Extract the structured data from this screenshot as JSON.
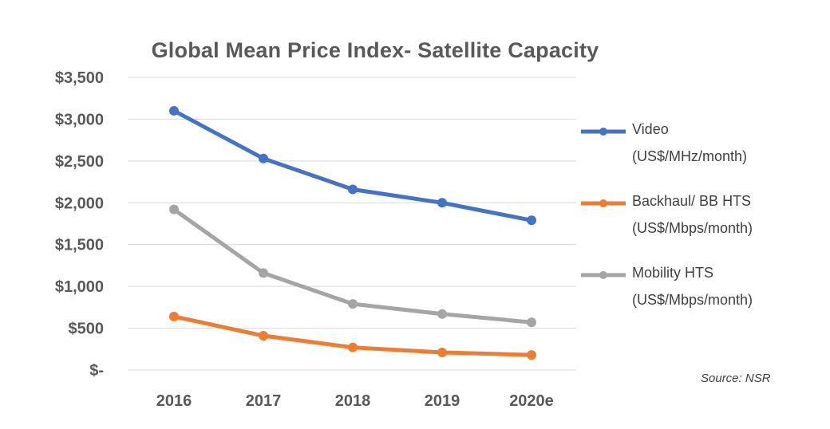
{
  "chart_data": {
    "type": "line",
    "title": "Global Mean Price Index- Satellite Capacity",
    "categories": [
      "2016",
      "2017",
      "2018",
      "2019",
      "2020e"
    ],
    "ylim": [
      0,
      3500
    ],
    "yticks": [
      0,
      500,
      1000,
      1500,
      2000,
      2500,
      3000,
      3500
    ],
    "ytick_labels": [
      "$-",
      "$500",
      "$1,000",
      "$1,500",
      "$2,000",
      "$2,500",
      "$3,000",
      "$3,500"
    ],
    "grid": true,
    "legend_position": "right",
    "series": [
      {
        "name": "Video",
        "unit": "(US$/MHz/month)",
        "color": "#4472C4",
        "values": [
          3100,
          2530,
          2160,
          2000,
          1790
        ]
      },
      {
        "name": "Backhaul/ BB HTS",
        "unit": "(US$/Mbps/month)",
        "color": "#ED7D31",
        "values": [
          640,
          410,
          270,
          210,
          180
        ]
      },
      {
        "name": "Mobility HTS",
        "unit": "(US$/Mbps/month)",
        "color": "#A5A5A5",
        "values": [
          1920,
          1160,
          790,
          670,
          570
        ]
      }
    ],
    "annotations": [
      "Source:  NSR"
    ]
  }
}
